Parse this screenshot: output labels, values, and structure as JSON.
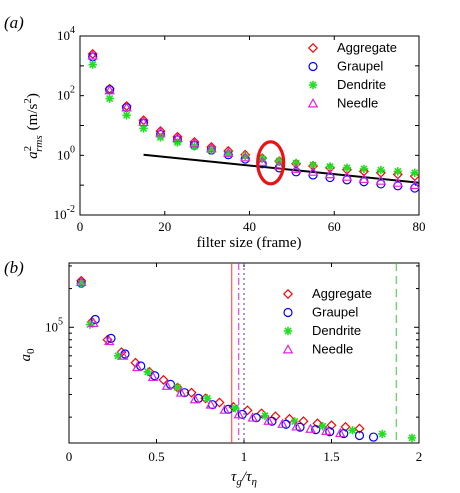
{
  "chart_data": [
    {
      "panel_label": "(a)",
      "type": "scatter",
      "xlabel": "filter size (frame)",
      "ylabel_base": "a",
      "ylabel_sup": "2",
      "ylabel_sub": "rms",
      "ylabel_unit": "(m/s",
      "ylabel_unit_sup": "2",
      "ylabel_unit_end": ")",
      "xlim": [
        0,
        80
      ],
      "ylim_log10": [
        -2,
        4
      ],
      "y_scale": "log",
      "x_ticks": [
        0,
        20,
        40,
        60,
        80
      ],
      "y_tick_labels": [
        {
          "base": "10",
          "exp": "-2",
          "log": -2
        },
        {
          "base": "10",
          "exp": "0",
          "log": 0
        },
        {
          "base": "10",
          "exp": "2",
          "log": 2
        },
        {
          "base": "10",
          "exp": "4",
          "log": 4
        }
      ],
      "legend_position": "top-right",
      "series": [
        {
          "name": "Aggregate",
          "marker": "diamond",
          "color": "#ff0000",
          "x": [
            3,
            7,
            11,
            15,
            19,
            23,
            27,
            31,
            35,
            39,
            43,
            47,
            51,
            55,
            59,
            63,
            67,
            71,
            75,
            79
          ],
          "y": [
            2500,
            170,
            45,
            15,
            6.5,
            4.2,
            2.8,
            1.9,
            1.4,
            1.05,
            0.8,
            0.64,
            0.52,
            0.44,
            0.38,
            0.33,
            0.29,
            0.26,
            0.23,
            0.2
          ]
        },
        {
          "name": "Graupel",
          "marker": "circle",
          "color": "#0000ff",
          "x": [
            3,
            7,
            11,
            15,
            19,
            23,
            27,
            31,
            35,
            39,
            43,
            47,
            51,
            55,
            59,
            63,
            67,
            71,
            75,
            79
          ],
          "y": [
            2000,
            160,
            40,
            12,
            5,
            3.3,
            2.2,
            1.5,
            1.05,
            0.75,
            0.52,
            0.38,
            0.28,
            0.22,
            0.18,
            0.15,
            0.13,
            0.11,
            0.095,
            0.08
          ]
        },
        {
          "name": "Dendrite",
          "marker": "asterisk",
          "color": "#22dd22",
          "x": [
            3,
            7,
            11,
            15,
            19,
            23,
            27,
            31,
            35,
            39,
            43,
            47,
            51,
            55,
            59,
            63,
            67,
            71,
            75,
            79
          ],
          "y": [
            1100,
            80,
            22,
            8,
            4,
            2.7,
            2,
            1.5,
            1.15,
            0.95,
            0.78,
            0.64,
            0.55,
            0.47,
            0.42,
            0.38,
            0.35,
            0.32,
            0.29,
            0.26
          ]
        },
        {
          "name": "Needle",
          "marker": "triangle",
          "color": "#dd22dd",
          "x": [
            3,
            7,
            11,
            15,
            19,
            23,
            27,
            31,
            35,
            39,
            43,
            47,
            51,
            55,
            59,
            63,
            67,
            71,
            75,
            79
          ],
          "y": [
            2200,
            150,
            40,
            13,
            5.8,
            3.8,
            2.5,
            1.7,
            1.2,
            0.85,
            0.6,
            0.45,
            0.35,
            0.28,
            0.23,
            0.19,
            0.16,
            0.14,
            0.12,
            0.1
          ]
        }
      ],
      "fit_line": {
        "x": [
          15,
          80
        ],
        "y": [
          1.05,
          0.12
        ],
        "color": "#000000"
      },
      "highlight_ellipse": {
        "cx": 45,
        "cy_log10": -0.25,
        "color": "#ee1111"
      }
    },
    {
      "panel_label": "(b)",
      "type": "scatter",
      "xlabel_base": "τ",
      "xlabel_sub": "g",
      "xlabel_sep": "/τ",
      "xlabel_sub2": "η",
      "ylabel_base": "a",
      "ylabel_sub": "0",
      "xlim": [
        0,
        2
      ],
      "ylim_log10": [
        4.1,
        5.5
      ],
      "y_scale": "log",
      "x_ticks": [
        "0",
        "0.5",
        "1",
        "1.5",
        "2"
      ],
      "y_tick_labels": [
        {
          "base": "10",
          "exp": "5",
          "log": 5
        }
      ],
      "legend_position": "top-right",
      "series": [
        {
          "name": "Aggregate",
          "marker": "diamond",
          "color": "#ff0000",
          "x": [
            0.07,
            0.13,
            0.22,
            0.3,
            0.38,
            0.46,
            0.54,
            0.62,
            0.7,
            0.78,
            0.86,
            0.94,
            1.02,
            1.1,
            1.18,
            1.26,
            1.34,
            1.42,
            1.5,
            1.58,
            1.66
          ],
          "y": [
            230000,
            110000,
            80000,
            64000,
            53000,
            45000,
            39000,
            34000,
            31000,
            28000,
            26000,
            24000,
            22600,
            21400,
            20300,
            19400,
            18600,
            17900,
            17300,
            16800,
            16300
          ]
        },
        {
          "name": "Graupel",
          "marker": "circle",
          "color": "#0000ff",
          "x": [
            0.07,
            0.15,
            0.24,
            0.32,
            0.41,
            0.49,
            0.58,
            0.66,
            0.74,
            0.82,
            0.91,
            0.99,
            1.07,
            1.16,
            1.24,
            1.32,
            1.41,
            1.49,
            1.57,
            1.66,
            1.74
          ],
          "y": [
            220000,
            115000,
            82000,
            62000,
            50000,
            42000,
            36000,
            31000,
            28000,
            25000,
            23000,
            21000,
            19800,
            18600,
            17600,
            16700,
            16000,
            15400,
            14900,
            14400,
            14000
          ]
        },
        {
          "name": "Dendrite",
          "marker": "asterisk",
          "color": "#22dd22",
          "x": [
            0.07,
            0.12,
            0.28,
            0.45,
            0.62,
            0.79,
            0.95,
            1.12,
            1.29,
            1.45,
            1.62,
            1.79,
            1.96
          ],
          "y": [
            220000,
            105000,
            60000,
            45000,
            34000,
            28000,
            23500,
            20500,
            18500,
            17000,
            15800,
            14800,
            13800
          ]
        },
        {
          "name": "Needle",
          "marker": "triangle",
          "color": "#dd22dd",
          "x": [
            0.07,
            0.14,
            0.23,
            0.31,
            0.39,
            0.48,
            0.56,
            0.64,
            0.72,
            0.81,
            0.89,
            0.97,
            1.05,
            1.14,
            1.22,
            1.3,
            1.38,
            1.47,
            1.55
          ],
          "y": [
            225000,
            108000,
            78000,
            60000,
            49000,
            41000,
            35000,
            31000,
            27500,
            25000,
            22800,
            21000,
            19800,
            18700,
            17700,
            16900,
            16200,
            15600,
            15000
          ]
        }
      ],
      "vlines": [
        {
          "x": 0.93,
          "color": "#ff3333",
          "style": "solid"
        },
        {
          "x": 0.97,
          "color": "#dd22dd",
          "style": "dashdot"
        },
        {
          "x": 1.0,
          "color": "#3333ff",
          "style": "dotted"
        },
        {
          "x": 1.87,
          "color": "#33cc33",
          "style": "dashed"
        }
      ]
    }
  ]
}
